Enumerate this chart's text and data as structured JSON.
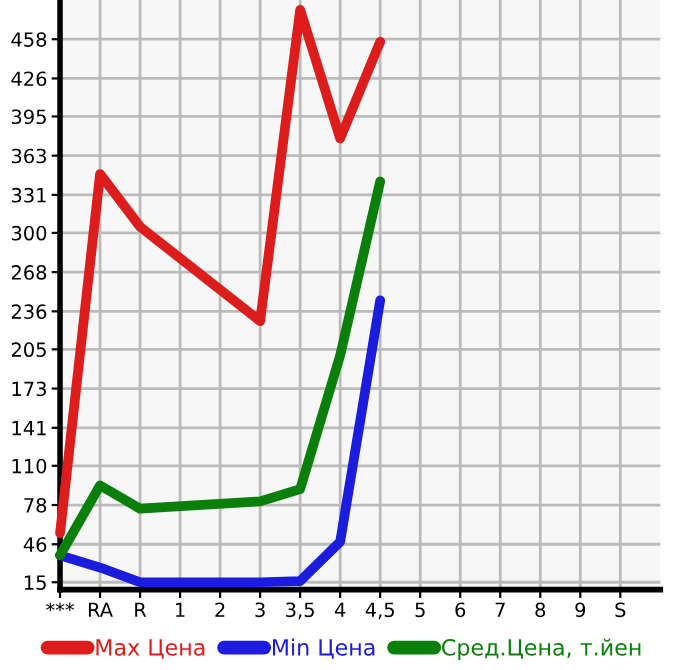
{
  "chart_data": {
    "type": "line",
    "categories": [
      "***",
      "RA",
      "R",
      "1",
      "2",
      "3",
      "3,5",
      "4",
      "4,5",
      "5",
      "6",
      "7",
      "8",
      "9",
      "S"
    ],
    "series": [
      {
        "name": "Max Цена",
        "color": "#dd1c1c",
        "values": [
          55,
          348,
          305,
          null,
          null,
          228,
          482,
          377,
          456,
          null,
          null,
          null,
          null,
          null,
          null
        ]
      },
      {
        "name": "Min Цена",
        "color": "#1c1cdd",
        "values": [
          37,
          27,
          15,
          null,
          null,
          15,
          16,
          48,
          245,
          null,
          null,
          null,
          null,
          null,
          null
        ]
      },
      {
        "name": "Сред.Цена, т.йен",
        "color": "#0a800a",
        "values": [
          37,
          94,
          75,
          null,
          null,
          81,
          91,
          200,
          342,
          null,
          null,
          null,
          null,
          null,
          null
        ]
      }
    ],
    "ylim": [
      9,
      490
    ],
    "yticks": [
      15,
      46,
      78,
      110,
      141,
      173,
      205,
      236,
      268,
      300,
      331,
      363,
      395,
      426,
      458
    ],
    "grid": true,
    "legend": "bottom",
    "marker": "none",
    "line_style": "solid"
  }
}
